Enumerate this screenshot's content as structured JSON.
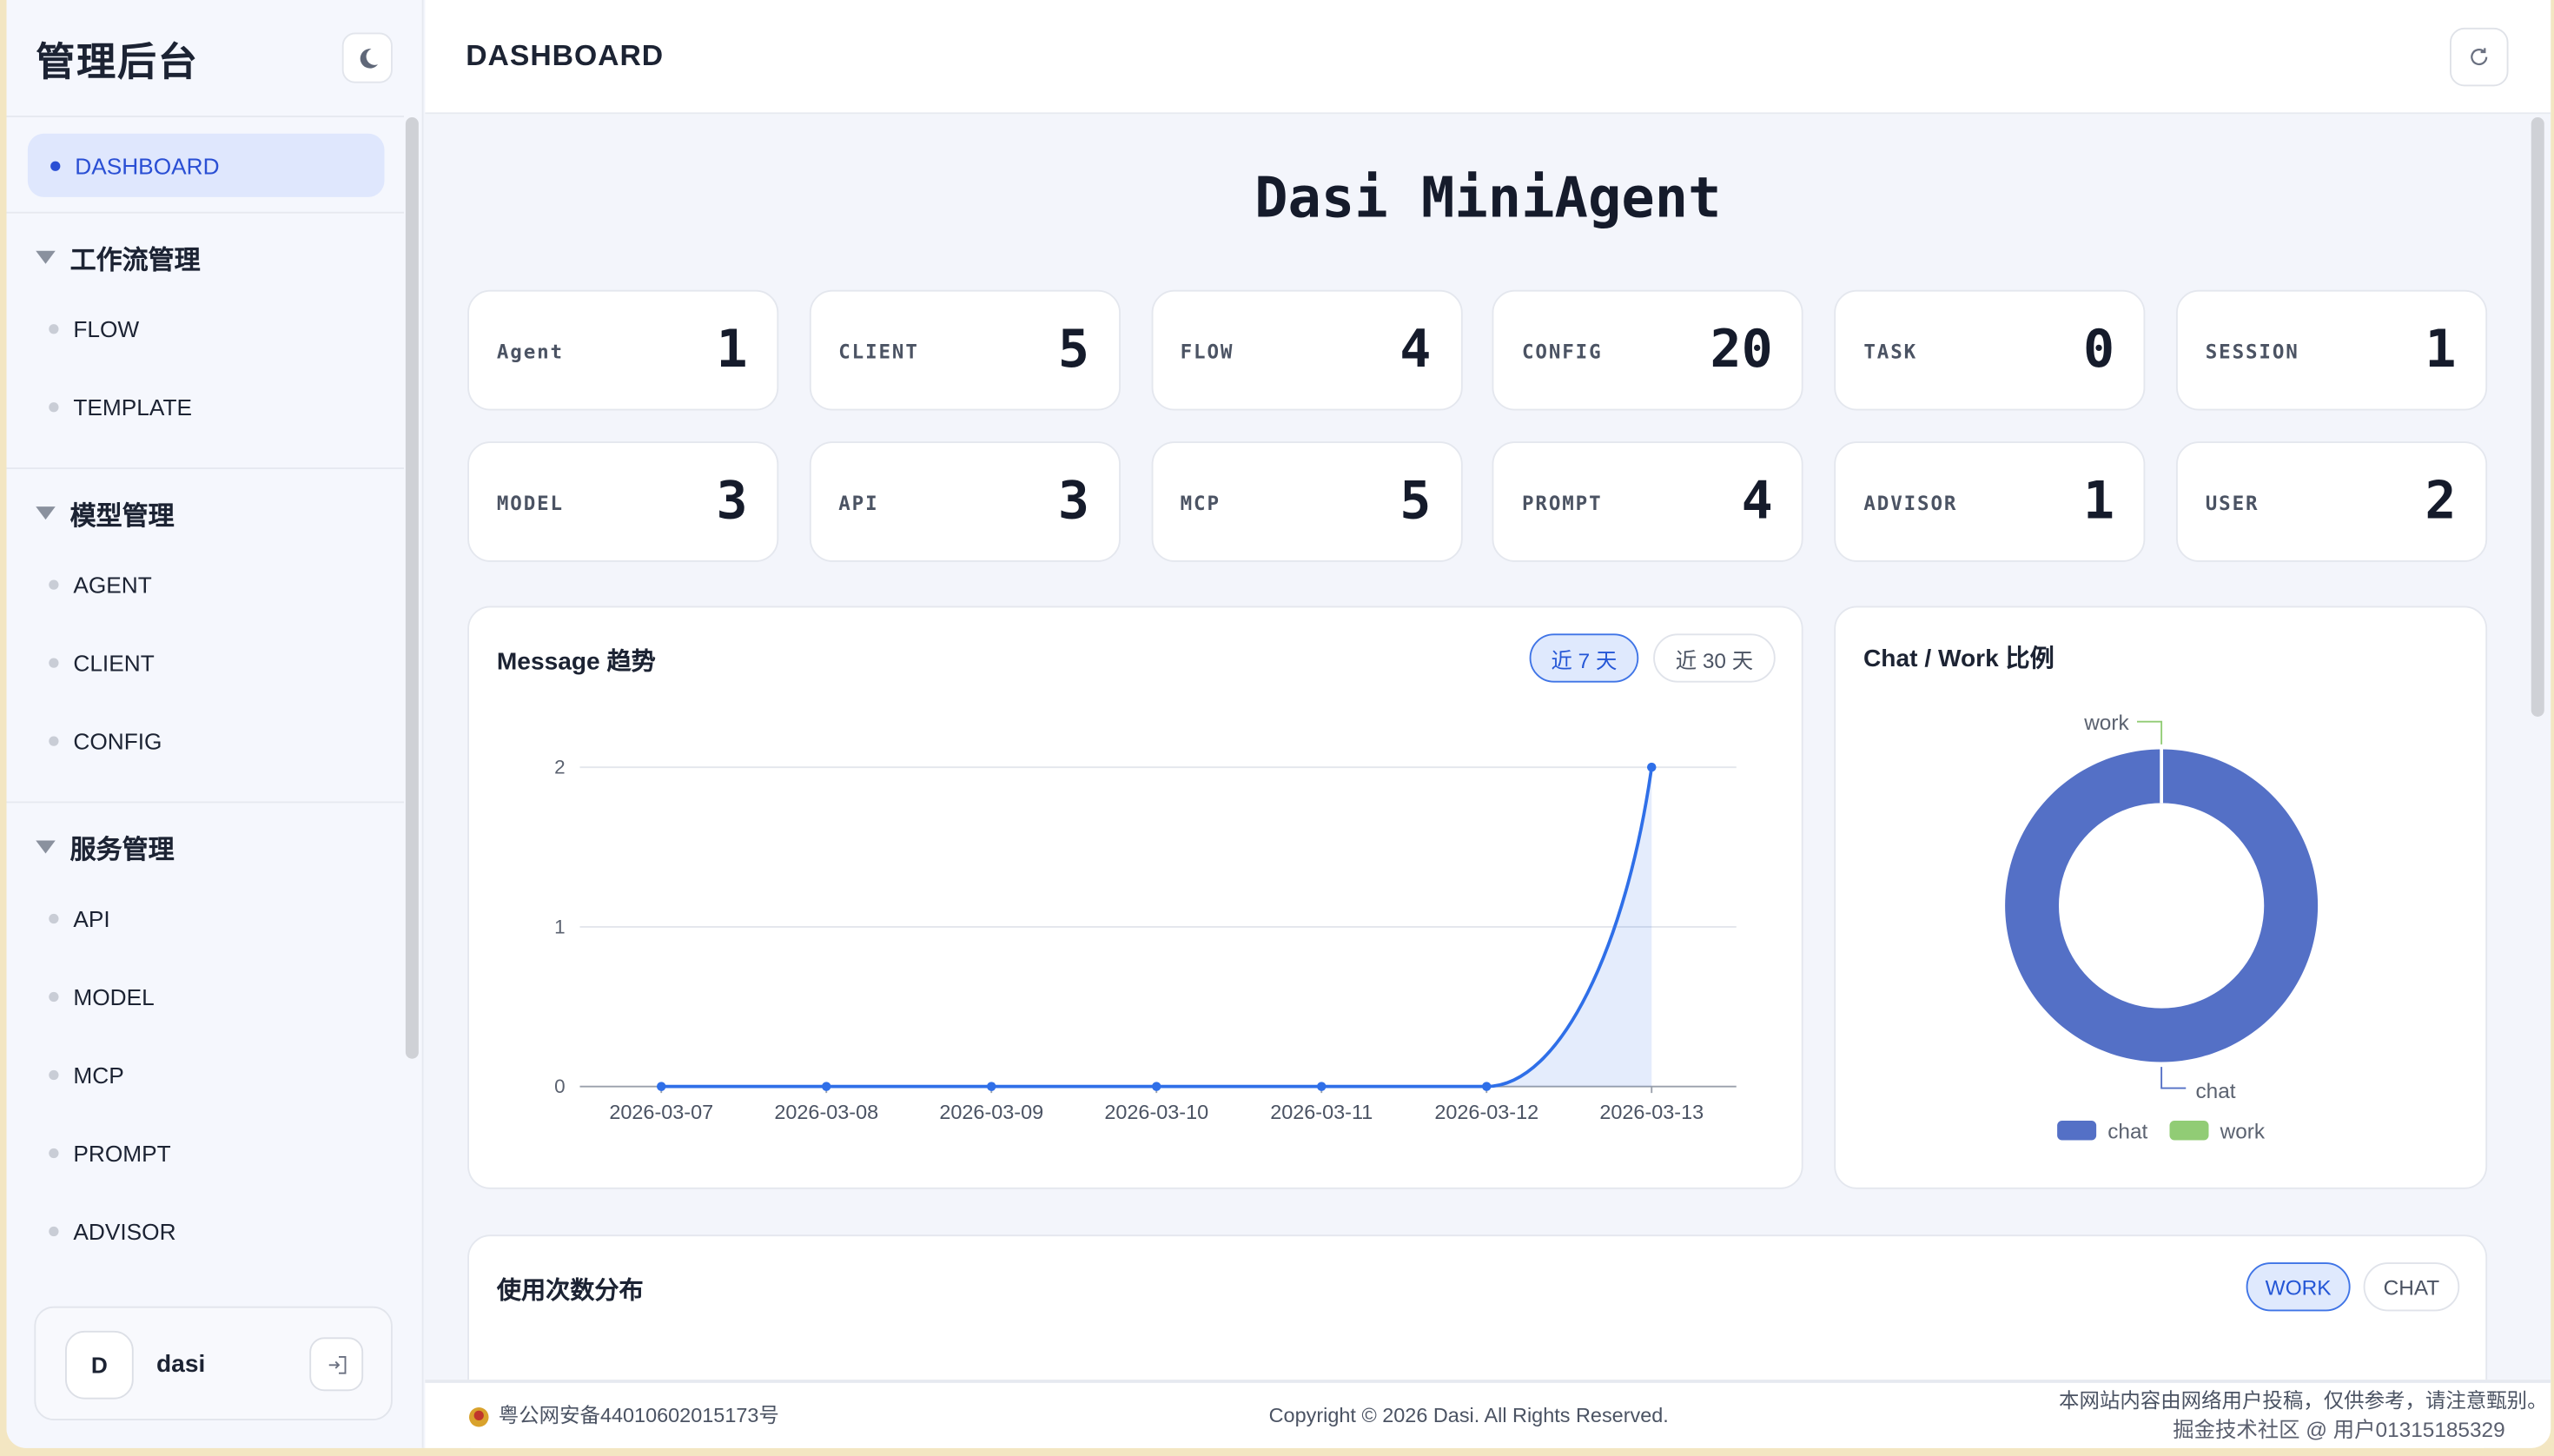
{
  "sidebar": {
    "brand": "管理后台",
    "active": "DASHBOARD",
    "groups": [
      {
        "label": "工作流管理",
        "items": [
          "FLOW",
          "TEMPLATE"
        ]
      },
      {
        "label": "模型管理",
        "items": [
          "AGENT",
          "CLIENT",
          "CONFIG"
        ]
      },
      {
        "label": "服务管理",
        "items": [
          "API",
          "MODEL",
          "MCP",
          "PROMPT",
          "ADVISOR"
        ]
      }
    ],
    "user": {
      "initial": "D",
      "name": "dasi"
    }
  },
  "header": {
    "title": "DASHBOARD"
  },
  "page_title": "Dasi MiniAgent",
  "stats": [
    {
      "label": "Agent",
      "value": "1"
    },
    {
      "label": "CLIENT",
      "value": "5"
    },
    {
      "label": "FLOW",
      "value": "4"
    },
    {
      "label": "CONFIG",
      "value": "20"
    },
    {
      "label": "TASK",
      "value": "0"
    },
    {
      "label": "SESSION",
      "value": "1"
    },
    {
      "label": "MODEL",
      "value": "3"
    },
    {
      "label": "API",
      "value": "3"
    },
    {
      "label": "MCP",
      "value": "5"
    },
    {
      "label": "PROMPT",
      "value": "4"
    },
    {
      "label": "ADVISOR",
      "value": "1"
    },
    {
      "label": "USER",
      "value": "2"
    }
  ],
  "message_card": {
    "title": "Message 趋势",
    "range_7": "近 7 天",
    "range_30": "近 30 天",
    "selected": "近 7 天"
  },
  "ratio_card": {
    "title": "Chat / Work 比例"
  },
  "usage_card": {
    "title": "使用次数分布",
    "tab_work": "WORK",
    "tab_chat": "CHAT",
    "selected": "WORK"
  },
  "chart_data": [
    {
      "type": "line",
      "x": [
        "2026-03-07",
        "2026-03-08",
        "2026-03-09",
        "2026-03-10",
        "2026-03-11",
        "2026-03-12",
        "2026-03-13"
      ],
      "values": [
        0,
        0,
        0,
        0,
        0,
        0,
        2
      ],
      "ylim": [
        0,
        2
      ],
      "yticks": [
        "0",
        "1",
        "2"
      ],
      "grid": true,
      "color": "#2f6fe8",
      "smooth": true,
      "area": true
    },
    {
      "type": "pie",
      "donut": true,
      "labels": [
        "chat",
        "work"
      ],
      "values": [
        100,
        0
      ],
      "unit": "percent",
      "colors": [
        "#5470c6",
        "#91cc75"
      ],
      "legend": "bottom"
    }
  ],
  "footer": {
    "icp": "粤公网安备44010602015173号",
    "copyright": "Copyright © 2026 Dasi. All Rights Reserved.",
    "disclaimer": "本网站内容由网络用户投稿，仅供参考，请注意甄别。",
    "watermark": "掘金技术社区 @ 用户01315185329"
  }
}
